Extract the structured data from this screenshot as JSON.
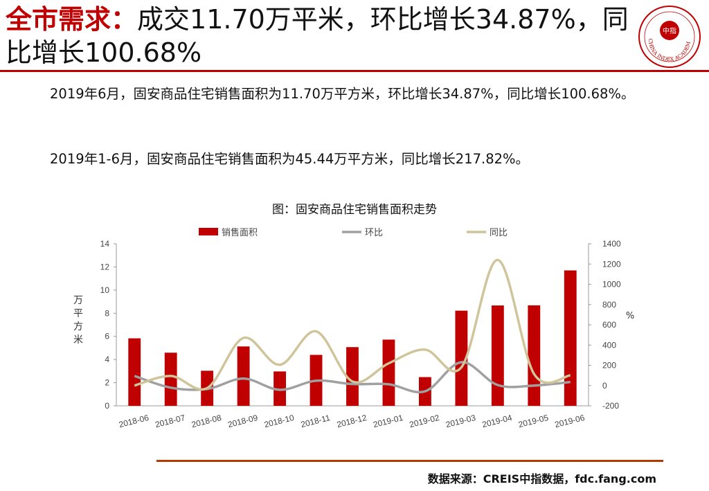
{
  "header": {
    "title_accent": "全市需求：",
    "title_rest": "成交11.70万平米，环比增长34.87%，同比增长100.68%",
    "logo_text": "CHINA INDEX ACADEMY",
    "logo_center": "中指",
    "logo_color": "#c00000"
  },
  "body": {
    "paragraph1": "2019年6月，固安商品住宅销售面积为11.70万平方米，环比增长34.87%，同比增长100.68%。",
    "paragraph2": "2019年1-6月，固安商品住宅销售面积为45.44万平方米，同比增长217.82%。"
  },
  "chart_data": {
    "type": "bar",
    "title": "图：固安商品住宅销售面积走势",
    "categories": [
      "2018-06",
      "2018-07",
      "2018-08",
      "2018-09",
      "2018-10",
      "2018-11",
      "2018-12",
      "2019-01",
      "2019-02",
      "2019-03",
      "2019-04",
      "2019-05",
      "2019-06"
    ],
    "series": [
      {
        "name": "销售面积",
        "type": "bar",
        "axis": "left",
        "color": "#c00000",
        "values": [
          5.83,
          4.59,
          3.03,
          5.13,
          2.97,
          4.4,
          5.07,
          5.72,
          2.48,
          8.22,
          8.67,
          8.68,
          11.7
        ]
      },
      {
        "name": "环比",
        "type": "line",
        "axis": "right",
        "color": "#a0a0a0",
        "values": [
          95,
          -21,
          -34,
          69,
          -42,
          48,
          15,
          13,
          -57,
          231,
          5,
          0,
          35
        ]
      },
      {
        "name": "同比",
        "type": "line",
        "axis": "right",
        "color": "#cfc49a",
        "values": [
          0,
          95,
          -25,
          470,
          205,
          535,
          40,
          220,
          355,
          180,
          1240,
          115,
          101
        ]
      }
    ],
    "ylabel_left": "万平方米",
    "ylabel_right": "%",
    "ylim_left": [
      0,
      14
    ],
    "yticks_left": [
      0,
      2,
      4,
      6,
      8,
      10,
      12,
      14
    ],
    "ylim_right": [
      -200,
      1400
    ],
    "yticks_right": [
      -200,
      0,
      200,
      400,
      600,
      800,
      1000,
      1200,
      1400
    ],
    "legend": "top",
    "grid": false
  },
  "footer": {
    "source": "数据来源：CREIS中指数据，fdc.fang.com",
    "rule_color": "#b33a00"
  }
}
